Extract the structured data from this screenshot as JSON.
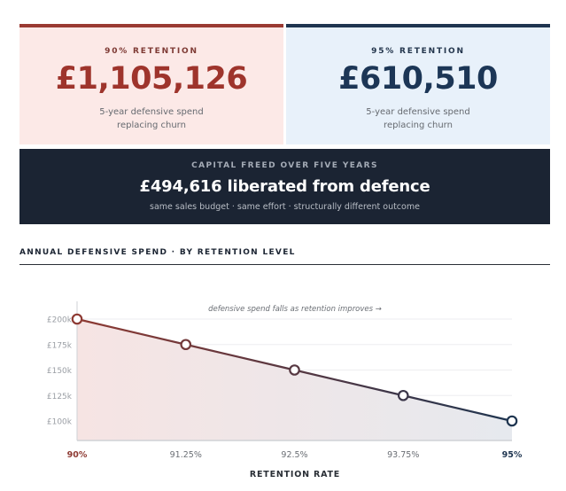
{
  "cards": [
    {
      "label": "90% RETENTION",
      "value": "£1,105,126",
      "sub_line1": "5-year defensive spend",
      "sub_line2": "replacing churn",
      "accent": "#9a3a32"
    },
    {
      "label": "95% RETENTION",
      "value": "£610,510",
      "sub_line1": "5-year defensive spend",
      "sub_line2": "replacing churn",
      "accent": "#1f3550"
    }
  ],
  "banner": {
    "label": "CAPITAL FREED OVER FIVE YEARS",
    "value": "£494,616 liberated from defence",
    "sub": "same sales budget · same effort · structurally different outcome"
  },
  "section": {
    "title": "ANNUAL DEFENSIVE SPEND · BY RETENTION LEVEL"
  },
  "chart_data": {
    "type": "line",
    "title": "ANNUAL DEFENSIVE SPEND · BY RETENTION LEVEL",
    "annotation": "defensive spend falls as retention improves →",
    "xlabel": "RETENTION RATE",
    "ylabel": "",
    "categories": [
      "90%",
      "91.25%",
      "92.5%",
      "93.75%",
      "95%"
    ],
    "x": [
      90,
      91.25,
      92.5,
      93.75,
      95
    ],
    "series": [
      {
        "name": "Annual defensive spend",
        "values": [
          200000,
          175000,
          150000,
          125000,
          100000
        ]
      }
    ],
    "yticks": [
      "£200k",
      "£175k",
      "£150k",
      "£125k",
      "£100k"
    ],
    "ytick_values": [
      200000,
      175000,
      150000,
      125000,
      100000
    ],
    "ylim": [
      81000,
      200000
    ],
    "grid": true,
    "legend": "none",
    "colors": {
      "start": "#8e3a33",
      "end": "#1f3550"
    }
  }
}
